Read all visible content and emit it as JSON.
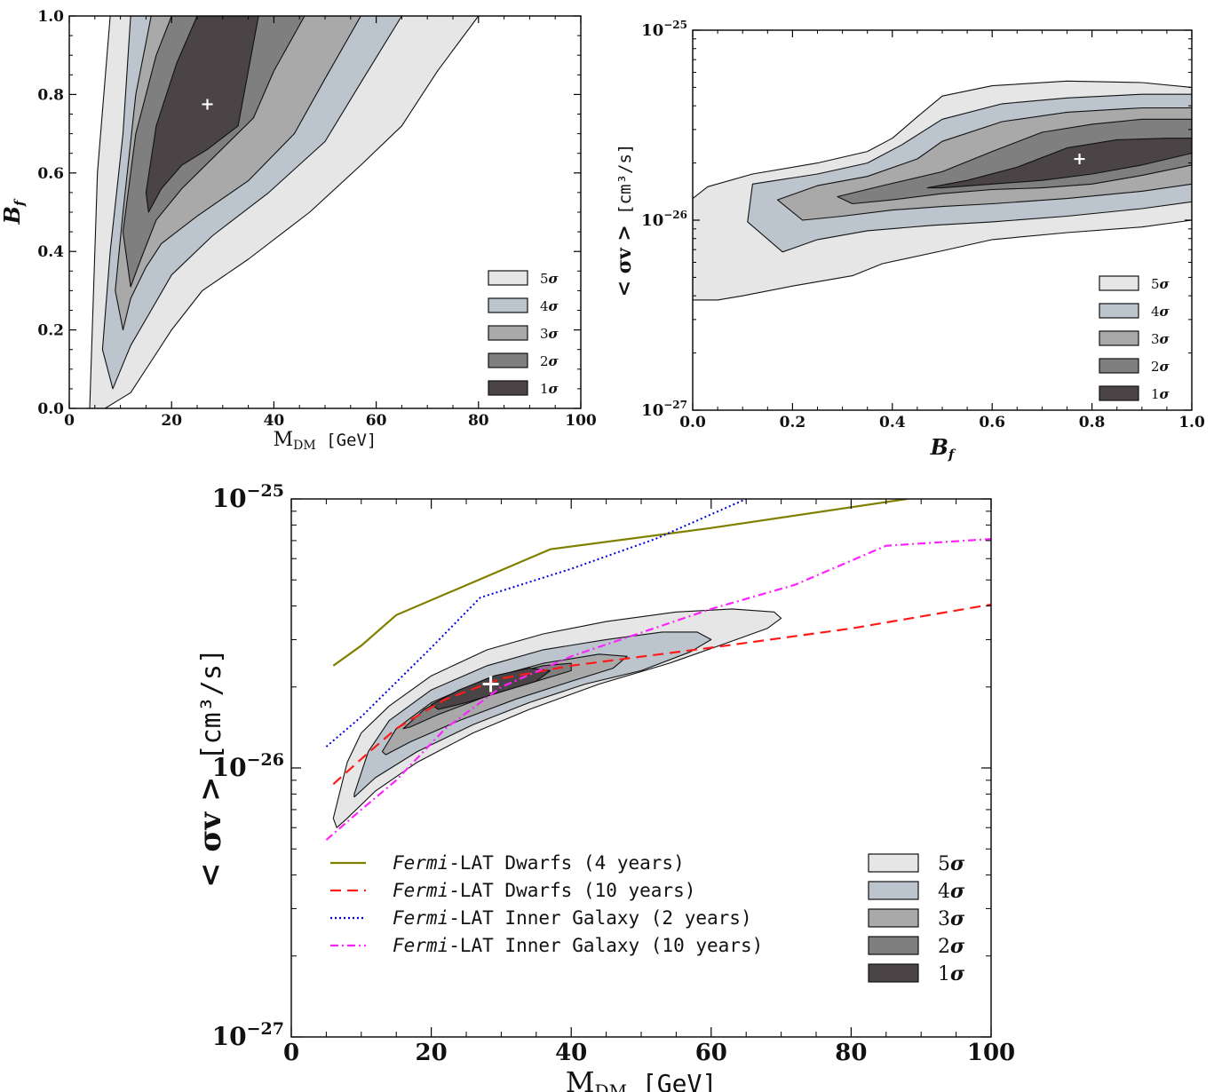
{
  "sigma_labels": [
    "5σ",
    "4σ",
    "3σ",
    "2σ",
    "1σ"
  ],
  "sigma_colors": [
    "#e6e6e6",
    "#bcc5cd",
    "#a9a9a9",
    "#7f7f7f",
    "#4a4446"
  ],
  "chart_data": [
    {
      "type": "contour",
      "xlabel_main": "M",
      "xlabel_sub": "DM",
      "xlabel_unit": "[GeV]",
      "ylabel": "Bf",
      "xlim": [
        0,
        100
      ],
      "ylim": [
        0,
        1
      ],
      "x_ticks": [
        "0",
        "20",
        "40",
        "60",
        "80",
        "100"
      ],
      "y_ticks": [
        "0.0",
        "0.2",
        "0.4",
        "0.6",
        "0.8",
        "1.0"
      ],
      "best_fit": [
        27,
        0.775
      ],
      "contours": {
        "5sigma": [
          [
            4,
            0
          ],
          [
            4.5,
            0.2
          ],
          [
            5.5,
            0.6
          ],
          [
            8,
            1
          ],
          [
            80,
            1
          ],
          [
            72,
            0.86
          ],
          [
            65,
            0.72
          ],
          [
            57,
            0.62
          ],
          [
            47,
            0.5
          ],
          [
            35,
            0.38
          ],
          [
            26,
            0.3
          ],
          [
            20,
            0.2
          ],
          [
            16,
            0.12
          ],
          [
            12,
            0.04
          ],
          [
            7,
            0
          ]
        ],
        "4sigma": [
          [
            6.5,
            0.15
          ],
          [
            8,
            0.4
          ],
          [
            10.5,
            0.7
          ],
          [
            12,
            1
          ],
          [
            65,
            1
          ],
          [
            57,
            0.83
          ],
          [
            50,
            0.68
          ],
          [
            39,
            0.55
          ],
          [
            28,
            0.44
          ],
          [
            20,
            0.34
          ],
          [
            16,
            0.25
          ],
          [
            12,
            0.16
          ],
          [
            8.5,
            0.05
          ]
        ],
        "3sigma": [
          [
            9,
            0.3
          ],
          [
            10.5,
            0.5
          ],
          [
            13,
            0.8
          ],
          [
            16,
            1
          ],
          [
            57,
            1
          ],
          [
            50,
            0.84
          ],
          [
            44,
            0.7
          ],
          [
            35,
            0.58
          ],
          [
            25,
            0.49
          ],
          [
            18,
            0.42
          ],
          [
            15,
            0.36
          ],
          [
            12,
            0.28
          ],
          [
            10.5,
            0.2
          ]
        ],
        "2sigma": [
          [
            10.5,
            0.45
          ],
          [
            13,
            0.7
          ],
          [
            17,
            0.9
          ],
          [
            20,
            1
          ],
          [
            46,
            1
          ],
          [
            40,
            0.86
          ],
          [
            36,
            0.74
          ],
          [
            29,
            0.65
          ],
          [
            22,
            0.56
          ],
          [
            17,
            0.48
          ],
          [
            14,
            0.38
          ],
          [
            12,
            0.31
          ]
        ],
        "1sigma": [
          [
            15,
            0.55
          ],
          [
            17,
            0.72
          ],
          [
            21,
            0.88
          ],
          [
            25,
            1
          ],
          [
            37,
            1
          ],
          [
            35,
            0.86
          ],
          [
            33,
            0.72
          ],
          [
            27,
            0.66
          ],
          [
            22,
            0.62
          ],
          [
            18,
            0.56
          ],
          [
            15.5,
            0.5
          ]
        ]
      }
    },
    {
      "type": "contour",
      "xlabel": "Bf",
      "ylabel": "< σv > [cm³/s]",
      "xlim": [
        0,
        1
      ],
      "ylim": [
        1e-27,
        1e-25
      ],
      "yscale": "log",
      "x_ticks": [
        "0.0",
        "0.2",
        "0.4",
        "0.6",
        "0.8",
        "1.0"
      ],
      "best_fit": [
        0.775,
        2.1e-26
      ],
      "contours": {
        "5sigma": [
          [
            0,
            3.8e-27
          ],
          [
            0,
            1.3e-26
          ],
          [
            0.03,
            1.5e-26
          ],
          [
            0.12,
            1.75e-26
          ],
          [
            0.25,
            2e-26
          ],
          [
            0.35,
            2.3e-26
          ],
          [
            0.4,
            2.7e-26
          ],
          [
            0.45,
            3.5e-26
          ],
          [
            0.5,
            4.5e-26
          ],
          [
            0.6,
            5.1e-26
          ],
          [
            0.75,
            5.4e-26
          ],
          [
            0.9,
            5.3e-26
          ],
          [
            1,
            5e-26
          ],
          [
            1,
            1e-26
          ],
          [
            0.9,
            9.2e-27
          ],
          [
            0.75,
            8.6e-27
          ],
          [
            0.6,
            7.9e-27
          ],
          [
            0.5,
            6.9e-27
          ],
          [
            0.38,
            5.9e-27
          ],
          [
            0.32,
            5.1e-27
          ],
          [
            0.2,
            4.5e-27
          ],
          [
            0.1,
            4e-27
          ],
          [
            0.05,
            3.8e-27
          ]
        ],
        "4sigma": [
          [
            0.11,
            9.8e-27
          ],
          [
            0.12,
            1.55e-26
          ],
          [
            0.25,
            1.75e-26
          ],
          [
            0.35,
            2e-26
          ],
          [
            0.42,
            2.5e-26
          ],
          [
            0.5,
            3.4e-26
          ],
          [
            0.62,
            4.1e-26
          ],
          [
            0.75,
            4.4e-26
          ],
          [
            0.9,
            4.6e-26
          ],
          [
            1,
            4.6e-26
          ],
          [
            1,
            1.25e-26
          ],
          [
            0.9,
            1.15e-26
          ],
          [
            0.75,
            1.05e-26
          ],
          [
            0.6,
            9.8e-27
          ],
          [
            0.48,
            9.4e-27
          ],
          [
            0.35,
            8.8e-27
          ],
          [
            0.25,
            7.9e-27
          ],
          [
            0.18,
            6.8e-27
          ]
        ],
        "3sigma": [
          [
            0.17,
            1.28e-26
          ],
          [
            0.25,
            1.52e-26
          ],
          [
            0.35,
            1.7e-26
          ],
          [
            0.45,
            2.1e-26
          ],
          [
            0.5,
            2.6e-26
          ],
          [
            0.62,
            3.3e-26
          ],
          [
            0.75,
            3.7e-26
          ],
          [
            0.9,
            3.9e-26
          ],
          [
            1,
            3.9e-26
          ],
          [
            1,
            1.55e-26
          ],
          [
            0.9,
            1.42e-26
          ],
          [
            0.75,
            1.3e-26
          ],
          [
            0.6,
            1.22e-26
          ],
          [
            0.5,
            1.18e-26
          ],
          [
            0.4,
            1.13e-26
          ],
          [
            0.3,
            1.05e-26
          ],
          [
            0.22,
            1e-26
          ]
        ],
        "2sigma": [
          [
            0.29,
            1.33e-26
          ],
          [
            0.38,
            1.52e-26
          ],
          [
            0.5,
            1.8e-26
          ],
          [
            0.6,
            2.3e-26
          ],
          [
            0.7,
            2.9e-26
          ],
          [
            0.8,
            3.2e-26
          ],
          [
            0.9,
            3.4e-26
          ],
          [
            1,
            3.4e-26
          ],
          [
            1,
            1.95e-26
          ],
          [
            0.9,
            1.72e-26
          ],
          [
            0.8,
            1.55e-26
          ],
          [
            0.7,
            1.48e-26
          ],
          [
            0.6,
            1.45e-26
          ],
          [
            0.5,
            1.38e-26
          ],
          [
            0.4,
            1.28e-26
          ],
          [
            0.32,
            1.22e-26
          ]
        ],
        "1sigma": [
          [
            0.47,
            1.48e-26
          ],
          [
            0.55,
            1.62e-26
          ],
          [
            0.65,
            1.9e-26
          ],
          [
            0.75,
            2.4e-26
          ],
          [
            0.85,
            2.65e-26
          ],
          [
            0.95,
            2.7e-26
          ],
          [
            1,
            2.7e-26
          ],
          [
            1,
            2.25e-26
          ],
          [
            0.9,
            1.95e-26
          ],
          [
            0.8,
            1.75e-26
          ],
          [
            0.7,
            1.62e-26
          ],
          [
            0.6,
            1.55e-26
          ],
          [
            0.5,
            1.48e-26
          ]
        ]
      }
    },
    {
      "type": "contour+line",
      "xlabel_main": "M",
      "xlabel_sub": "DM",
      "xlabel_unit": "[GeV]",
      "ylabel": "< σv > [cm³/s]",
      "xlim": [
        0,
        100
      ],
      "ylim": [
        1e-27,
        1e-25
      ],
      "yscale": "log",
      "x_ticks": [
        "0",
        "20",
        "40",
        "60",
        "80",
        "100"
      ],
      "best_fit": [
        28.5,
        2.05e-26
      ],
      "contours": {
        "5sigma": [
          [
            6,
            6.5e-27
          ],
          [
            8,
            1.05e-26
          ],
          [
            10,
            1.35e-26
          ],
          [
            14,
            1.7e-26
          ],
          [
            20,
            2.2e-26
          ],
          [
            28,
            2.75e-26
          ],
          [
            36,
            3.15e-26
          ],
          [
            45,
            3.5e-26
          ],
          [
            55,
            3.8e-26
          ],
          [
            63,
            3.9e-26
          ],
          [
            69,
            3.8e-26
          ],
          [
            70,
            3.6e-26
          ],
          [
            68,
            3.3e-26
          ],
          [
            62,
            2.9e-26
          ],
          [
            54,
            2.45e-26
          ],
          [
            44,
            2.05e-26
          ],
          [
            34,
            1.65e-26
          ],
          [
            26,
            1.35e-26
          ],
          [
            18,
            1.05e-26
          ],
          [
            12,
            8.2e-27
          ],
          [
            8,
            6.5e-27
          ],
          [
            6.5,
            6e-27
          ]
        ],
        "4sigma": [
          [
            9,
            8e-27
          ],
          [
            11,
            1.15e-26
          ],
          [
            14,
            1.5e-26
          ],
          [
            20,
            1.95e-26
          ],
          [
            28,
            2.4e-26
          ],
          [
            36,
            2.75e-26
          ],
          [
            45,
            3e-26
          ],
          [
            53,
            3.2e-26
          ],
          [
            58,
            3.2e-26
          ],
          [
            60,
            3e-26
          ],
          [
            57,
            2.7e-26
          ],
          [
            50,
            2.3e-26
          ],
          [
            42,
            2.05e-26
          ],
          [
            34,
            1.75e-26
          ],
          [
            26,
            1.45e-26
          ],
          [
            18,
            1.15e-26
          ],
          [
            12,
            9.2e-27
          ],
          [
            9,
            7.8e-27
          ]
        ],
        "3sigma": [
          [
            13,
            1.15e-26
          ],
          [
            15,
            1.4e-26
          ],
          [
            20,
            1.75e-26
          ],
          [
            28,
            2.15e-26
          ],
          [
            36,
            2.45e-26
          ],
          [
            44,
            2.65e-26
          ],
          [
            48,
            2.6e-26
          ],
          [
            46,
            2.35e-26
          ],
          [
            40,
            2.1e-26
          ],
          [
            32,
            1.8e-26
          ],
          [
            24,
            1.5e-26
          ],
          [
            17,
            1.25e-26
          ],
          [
            13.5,
            1.12e-26
          ]
        ],
        "2sigma": [
          [
            16,
            1.4e-26
          ],
          [
            19,
            1.65e-26
          ],
          [
            24,
            1.95e-26
          ],
          [
            30,
            2.2e-26
          ],
          [
            36,
            2.4e-26
          ],
          [
            40,
            2.45e-26
          ],
          [
            40,
            2.3e-26
          ],
          [
            35,
            2.1e-26
          ],
          [
            28,
            1.85e-26
          ],
          [
            21,
            1.58e-26
          ],
          [
            17,
            1.42e-26
          ]
        ],
        "1sigma": [
          [
            20,
            1.72e-26
          ],
          [
            24,
            1.95e-26
          ],
          [
            29,
            2.2e-26
          ],
          [
            34,
            2.35e-26
          ],
          [
            37,
            2.3e-26
          ],
          [
            35,
            2.1e-26
          ],
          [
            30,
            1.92e-26
          ],
          [
            25,
            1.75e-26
          ],
          [
            21,
            1.65e-26
          ]
        ]
      },
      "lines": [
        {
          "name": "Dwarfs (4 years)",
          "style": "solid",
          "color": "#808000",
          "points": [
            [
              6,
              2.4e-26
            ],
            [
              10,
              2.85e-26
            ],
            [
              15,
              3.7e-26
            ],
            [
              37,
              6.5e-26
            ],
            [
              60,
              7.8e-26
            ],
            [
              88,
              1e-25
            ]
          ]
        },
        {
          "name": "Dwarfs (10 years)",
          "style": "dashed",
          "color": "#ff1a1a",
          "points": [
            [
              6,
              8.7e-27
            ],
            [
              10,
              1.08e-26
            ],
            [
              15,
              1.4e-26
            ],
            [
              22,
              1.8e-26
            ],
            [
              30,
              2.15e-26
            ],
            [
              40,
              2.4e-26
            ],
            [
              60,
              2.8e-26
            ],
            [
              80,
              3.3e-26
            ],
            [
              100,
              4.05e-26
            ]
          ]
        },
        {
          "name": "Inner Galaxy (2 years)",
          "style": "dotted",
          "color": "#0000e0",
          "points": [
            [
              5,
              1.2e-26
            ],
            [
              10,
              1.55e-26
            ],
            [
              20,
              2.8e-26
            ],
            [
              27,
              4.3e-26
            ],
            [
              40,
              5.5e-26
            ],
            [
              52,
              7.1e-26
            ],
            [
              65,
              1e-25
            ]
          ]
        },
        {
          "name": "Inner Galaxy (10 years)",
          "style": "dashdot",
          "color": "#ff22ff",
          "points": [
            [
              5,
              5.4e-27
            ],
            [
              10,
              7e-27
            ],
            [
              15,
              9e-27
            ],
            [
              22,
              1.4e-26
            ],
            [
              30,
              2e-26
            ],
            [
              40,
              2.6e-26
            ],
            [
              60,
              3.9e-26
            ],
            [
              72,
              4.8e-26
            ],
            [
              85,
              6.7e-26
            ],
            [
              100,
              7.1e-26
            ]
          ]
        }
      ],
      "legend_prefix": "Fermi",
      "legend_suffix": "-LAT"
    }
  ]
}
